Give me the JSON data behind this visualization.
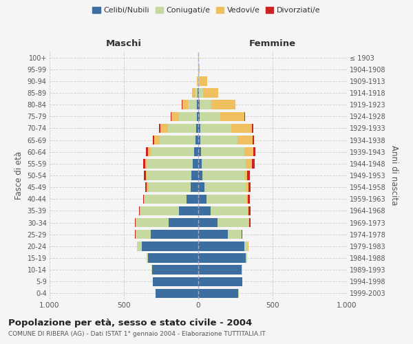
{
  "age_groups": [
    "0-4",
    "5-9",
    "10-14",
    "15-19",
    "20-24",
    "25-29",
    "30-34",
    "35-39",
    "40-44",
    "45-49",
    "50-54",
    "55-59",
    "60-64",
    "65-69",
    "70-74",
    "75-79",
    "80-84",
    "85-89",
    "90-94",
    "95-99",
    "100+"
  ],
  "birth_years": [
    "1999-2003",
    "1994-1998",
    "1989-1993",
    "1984-1988",
    "1979-1983",
    "1974-1978",
    "1969-1973",
    "1964-1968",
    "1959-1963",
    "1954-1958",
    "1949-1953",
    "1944-1948",
    "1939-1943",
    "1934-1938",
    "1929-1933",
    "1924-1928",
    "1919-1923",
    "1914-1918",
    "1909-1913",
    "1904-1908",
    "≤ 1903"
  ],
  "colors": {
    "celibi": "#3d6ea0",
    "coniugati": "#c5d9a0",
    "vedovi": "#f0c060",
    "divorziati": "#cc2222"
  },
  "maschi": {
    "celibi": [
      285,
      305,
      310,
      340,
      380,
      320,
      200,
      130,
      80,
      50,
      45,
      35,
      30,
      20,
      15,
      10,
      8,
      4,
      2,
      2,
      2
    ],
    "coniugati": [
      2,
      2,
      4,
      8,
      30,
      100,
      220,
      260,
      280,
      290,
      300,
      310,
      290,
      240,
      190,
      120,
      60,
      20,
      4,
      0,
      0
    ],
    "vedovi": [
      0,
      0,
      0,
      0,
      2,
      2,
      2,
      3,
      4,
      5,
      8,
      12,
      20,
      35,
      50,
      50,
      40,
      16,
      4,
      0,
      0
    ],
    "divorziati": [
      0,
      0,
      0,
      0,
      0,
      2,
      4,
      5,
      8,
      12,
      14,
      14,
      12,
      10,
      8,
      5,
      2,
      0,
      0,
      0,
      0
    ]
  },
  "femmine": {
    "celibi": [
      270,
      295,
      290,
      320,
      310,
      200,
      130,
      85,
      55,
      40,
      30,
      25,
      20,
      15,
      12,
      10,
      8,
      4,
      2,
      2,
      2
    ],
    "coniugati": [
      2,
      2,
      4,
      8,
      25,
      90,
      210,
      250,
      270,
      285,
      280,
      295,
      290,
      250,
      210,
      140,
      80,
      30,
      8,
      0,
      0
    ],
    "vedovi": [
      0,
      0,
      0,
      0,
      2,
      2,
      3,
      5,
      8,
      12,
      20,
      40,
      60,
      100,
      140,
      160,
      160,
      100,
      50,
      6,
      2
    ],
    "divorziati": [
      0,
      0,
      0,
      0,
      2,
      4,
      8,
      14,
      15,
      14,
      18,
      18,
      15,
      10,
      8,
      5,
      2,
      2,
      0,
      0,
      0
    ]
  },
  "title": "Popolazione per età, sesso e stato civile - 2004",
  "subtitle": "COMUNE DI RIBERA (AG) - Dati ISTAT 1° gennaio 2004 - Elaborazione TUTTITALIA.IT",
  "xlabel_maschi": "Maschi",
  "xlabel_femmine": "Femmine",
  "ylabel_left": "Fasce di età",
  "ylabel_right": "Anni di nascita",
  "xlim": 1000,
  "legend_labels": [
    "Celibi/Nubili",
    "Coniugati/e",
    "Vedovi/e",
    "Divorziati/e"
  ],
  "background_color": "#f5f5f5"
}
